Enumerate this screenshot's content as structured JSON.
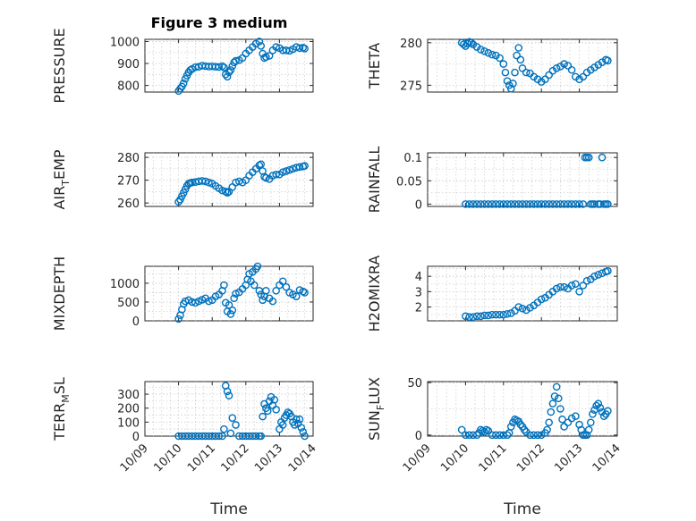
{
  "figure_title": "Figure 3 medium",
  "colors": {
    "marker": "#0072BD",
    "axis": "#262626",
    "grid": "#cfcfcf"
  },
  "chart_data": [
    {
      "id": "pressure",
      "type": "scatter",
      "title": "Figure 3 medium",
      "ylabel": "PRESSURE",
      "ylabel_parts": [
        "PRESSURE"
      ],
      "xlim": [
        9.0,
        14.0
      ],
      "ylim": [
        770,
        1010
      ],
      "yticks": [
        800,
        900,
        1000
      ],
      "x": [
        10.0,
        10.05,
        10.1,
        10.15,
        10.2,
        10.25,
        10.3,
        10.35,
        10.4,
        10.5,
        10.6,
        10.7,
        10.8,
        10.9,
        11.0,
        11.1,
        11.2,
        11.3,
        11.35,
        11.4,
        11.45,
        11.5,
        11.55,
        11.6,
        11.65,
        11.7,
        11.8,
        11.9,
        12.0,
        12.1,
        12.2,
        12.3,
        12.4,
        12.45,
        12.5,
        12.55,
        12.6,
        12.7,
        12.8,
        12.9,
        13.0,
        13.1,
        13.2,
        13.3,
        13.4,
        13.5,
        13.6,
        13.7,
        13.75
      ],
      "y": [
        775,
        785,
        795,
        810,
        830,
        845,
        860,
        870,
        875,
        883,
        885,
        890,
        888,
        886,
        887,
        885,
        884,
        888,
        882,
        850,
        840,
        860,
        870,
        888,
        905,
        912,
        915,
        925,
        945,
        960,
        975,
        990,
        1000,
        980,
        945,
        925,
        930,
        935,
        960,
        975,
        970,
        960,
        960,
        958,
        965,
        975,
        970,
        972,
        968
      ]
    },
    {
      "id": "theta",
      "type": "scatter",
      "ylabel": "THETA",
      "ylabel_parts": [
        "THETA"
      ],
      "xlim": [
        9.0,
        14.0
      ],
      "ylim": [
        274.2,
        280.4
      ],
      "yticks": [
        275,
        280
      ],
      "x": [
        9.9,
        9.95,
        10.0,
        10.05,
        10.1,
        10.15,
        10.2,
        10.3,
        10.4,
        10.5,
        10.6,
        10.7,
        10.8,
        10.9,
        11.0,
        11.05,
        11.1,
        11.15,
        11.2,
        11.25,
        11.3,
        11.35,
        11.4,
        11.45,
        11.5,
        11.6,
        11.7,
        11.8,
        11.9,
        12.0,
        12.1,
        12.2,
        12.3,
        12.4,
        12.5,
        12.6,
        12.7,
        12.8,
        12.9,
        13.0,
        13.1,
        13.2,
        13.3,
        13.4,
        13.5,
        13.6,
        13.7,
        13.75
      ],
      "y": [
        280.0,
        279.8,
        279.6,
        279.9,
        280.1,
        280.0,
        279.8,
        279.5,
        279.2,
        279.0,
        278.8,
        278.6,
        278.5,
        278.2,
        277.5,
        276.5,
        275.5,
        275.0,
        274.6,
        275.2,
        276.5,
        278.5,
        279.4,
        278.0,
        277.0,
        276.5,
        276.4,
        276.0,
        275.7,
        275.4,
        275.7,
        276.2,
        276.7,
        277.0,
        277.2,
        277.5,
        277.3,
        276.8,
        276.0,
        275.7,
        276.0,
        276.5,
        276.8,
        277.1,
        277.4,
        277.7,
        278.0,
        277.9
      ]
    },
    {
      "id": "air_temp",
      "type": "scatter",
      "ylabel": "AIR_TEMP",
      "ylabel_parts": [
        "AIR",
        "T",
        "EMP"
      ],
      "xlim": [
        9.0,
        14.0
      ],
      "ylim": [
        258.5,
        282
      ],
      "yticks": [
        260,
        270,
        280
      ],
      "x": [
        10.0,
        10.05,
        10.1,
        10.15,
        10.2,
        10.25,
        10.3,
        10.35,
        10.4,
        10.5,
        10.6,
        10.7,
        10.8,
        10.9,
        11.0,
        11.1,
        11.2,
        11.3,
        11.4,
        11.45,
        11.5,
        11.6,
        11.7,
        11.8,
        11.9,
        12.0,
        12.1,
        12.2,
        12.3,
        12.4,
        12.45,
        12.5,
        12.55,
        12.6,
        12.7,
        12.8,
        12.9,
        13.0,
        13.1,
        13.2,
        13.3,
        13.4,
        13.5,
        13.6,
        13.7,
        13.75
      ],
      "y": [
        260.5,
        261.5,
        263,
        264.5,
        266,
        267.5,
        268.5,
        268.8,
        269,
        269.2,
        269.5,
        269.7,
        269.5,
        269,
        268.5,
        267.5,
        266.5,
        265.5,
        265,
        264.5,
        265,
        267,
        269,
        269.5,
        269,
        270,
        272,
        273.5,
        275,
        276.5,
        277,
        274,
        271.5,
        271,
        270.5,
        272,
        272.5,
        272.5,
        273.5,
        274,
        274.5,
        275,
        275.5,
        275.8,
        276,
        276.3
      ]
    },
    {
      "id": "rainfall",
      "type": "scatter",
      "ylabel": "RAINFALL",
      "ylabel_parts": [
        "RAINFALL"
      ],
      "xlim": [
        9.0,
        14.0
      ],
      "ylim": [
        -0.005,
        0.11
      ],
      "yticks": [
        0,
        0.05,
        0.1
      ],
      "ytick_labels": [
        "0",
        "0.05",
        "0.1"
      ],
      "x": [
        10.0,
        10.1,
        10.2,
        10.3,
        10.4,
        10.5,
        10.6,
        10.7,
        10.8,
        10.9,
        11.0,
        11.1,
        11.2,
        11.3,
        11.4,
        11.5,
        11.6,
        11.7,
        11.8,
        11.9,
        12.0,
        12.1,
        12.2,
        12.3,
        12.4,
        12.5,
        12.6,
        12.7,
        12.8,
        12.9,
        13.0,
        13.1,
        13.15,
        13.2,
        13.25,
        13.3,
        13.35,
        13.4,
        13.5,
        13.55,
        13.6,
        13.65,
        13.7,
        13.75
      ],
      "y": [
        0,
        0,
        0,
        0,
        0,
        0,
        0,
        0,
        0,
        0,
        0,
        0,
        0,
        0,
        0,
        0,
        0,
        0,
        0,
        0,
        0,
        0,
        0,
        0,
        0,
        0,
        0,
        0,
        0,
        0,
        0,
        0,
        0.1,
        0.1,
        0.1,
        0,
        0,
        0,
        0,
        0,
        0.1,
        0,
        0,
        0
      ]
    },
    {
      "id": "mixdepth",
      "type": "scatter",
      "ylabel": "MIXDEPTH",
      "ylabel_parts": [
        "MIXDEPTH"
      ],
      "xlim": [
        9.0,
        14.0
      ],
      "ylim": [
        0,
        1450
      ],
      "yticks": [
        0,
        500,
        1000
      ],
      "x": [
        10.0,
        10.05,
        10.1,
        10.15,
        10.2,
        10.3,
        10.4,
        10.5,
        10.6,
        10.7,
        10.8,
        10.9,
        11.0,
        11.1,
        11.2,
        11.3,
        11.35,
        11.4,
        11.45,
        11.5,
        11.55,
        11.6,
        11.65,
        11.7,
        11.8,
        11.9,
        12.0,
        12.05,
        12.1,
        12.15,
        12.2,
        12.25,
        12.3,
        12.35,
        12.4,
        12.45,
        12.5,
        12.55,
        12.6,
        12.7,
        12.8,
        12.9,
        13.0,
        13.1,
        13.2,
        13.3,
        13.4,
        13.5,
        13.6,
        13.7,
        13.75
      ],
      "y": [
        50,
        150,
        300,
        450,
        520,
        550,
        500,
        480,
        520,
        560,
        600,
        520,
        550,
        650,
        700,
        800,
        950,
        480,
        250,
        420,
        180,
        280,
        600,
        720,
        760,
        850,
        950,
        1100,
        1250,
        1050,
        1300,
        950,
        1380,
        1450,
        800,
        700,
        550,
        650,
        800,
        600,
        520,
        800,
        950,
        1050,
        900,
        750,
        700,
        650,
        820,
        780,
        750
      ]
    },
    {
      "id": "h2omixra",
      "type": "scatter",
      "ylabel": "H2OMIXRA",
      "ylabel_parts": [
        "H2OMIXRA"
      ],
      "xlim": [
        9.0,
        14.0
      ],
      "ylim": [
        1.1,
        4.65
      ],
      "yticks": [
        2,
        3,
        4
      ],
      "x": [
        10.0,
        10.1,
        10.2,
        10.3,
        10.4,
        10.5,
        10.6,
        10.7,
        10.8,
        10.9,
        11.0,
        11.1,
        11.2,
        11.3,
        11.4,
        11.5,
        11.6,
        11.7,
        11.8,
        11.9,
        12.0,
        12.1,
        12.2,
        12.3,
        12.4,
        12.5,
        12.6,
        12.7,
        12.8,
        12.9,
        13.0,
        13.1,
        13.2,
        13.3,
        13.4,
        13.5,
        13.6,
        13.7,
        13.75
      ],
      "y": [
        1.4,
        1.35,
        1.35,
        1.4,
        1.4,
        1.45,
        1.45,
        1.5,
        1.5,
        1.5,
        1.5,
        1.55,
        1.6,
        1.75,
        2.0,
        1.9,
        1.8,
        1.95,
        2.1,
        2.3,
        2.5,
        2.6,
        2.8,
        3.0,
        3.2,
        3.3,
        3.3,
        3.2,
        3.4,
        3.5,
        3.0,
        3.4,
        3.7,
        3.8,
        4.0,
        4.1,
        4.2,
        4.3,
        4.35
      ]
    },
    {
      "id": "terr_msl",
      "type": "scatter",
      "ylabel": "TERR_MSL",
      "ylabel_parts": [
        "TERR",
        "M",
        "SL"
      ],
      "xlim": [
        9.0,
        14.0
      ],
      "ylim": [
        0,
        390
      ],
      "yticks": [
        0,
        100,
        200,
        300
      ],
      "x": [
        10.0,
        10.1,
        10.2,
        10.3,
        10.4,
        10.5,
        10.6,
        10.7,
        10.8,
        10.9,
        11.0,
        11.1,
        11.2,
        11.3,
        11.35,
        11.4,
        11.45,
        11.5,
        11.55,
        11.6,
        11.7,
        11.8,
        11.9,
        12.0,
        12.1,
        12.2,
        12.3,
        12.4,
        12.45,
        12.5,
        12.55,
        12.6,
        12.65,
        12.7,
        12.75,
        12.8,
        12.85,
        12.9,
        13.0,
        13.05,
        13.1,
        13.15,
        13.2,
        13.25,
        13.3,
        13.35,
        13.4,
        13.45,
        13.5,
        13.55,
        13.6,
        13.65,
        13.7,
        13.75
      ],
      "y": [
        0,
        0,
        0,
        0,
        0,
        0,
        0,
        0,
        0,
        0,
        0,
        0,
        0,
        0,
        50,
        360,
        320,
        290,
        20,
        130,
        80,
        0,
        0,
        0,
        0,
        0,
        0,
        0,
        0,
        140,
        230,
        200,
        180,
        250,
        280,
        220,
        260,
        190,
        50,
        100,
        80,
        130,
        150,
        170,
        160,
        140,
        100,
        80,
        120,
        90,
        120,
        60,
        30,
        0
      ]
    },
    {
      "id": "sun_flux",
      "type": "scatter",
      "ylabel": "SUN_FLUX",
      "ylabel_parts": [
        "SUN",
        "F",
        "LUX"
      ],
      "xlim": [
        9.0,
        14.0
      ],
      "ylim": [
        -1,
        51
      ],
      "yticks": [
        0,
        50
      ],
      "x": [
        9.9,
        10.0,
        10.1,
        10.2,
        10.3,
        10.35,
        10.4,
        10.45,
        10.5,
        10.55,
        10.6,
        10.7,
        10.8,
        10.9,
        11.0,
        11.1,
        11.15,
        11.2,
        11.25,
        11.3,
        11.35,
        11.4,
        11.45,
        11.5,
        11.55,
        11.6,
        11.7,
        11.8,
        11.9,
        12.0,
        12.1,
        12.15,
        12.2,
        12.25,
        12.3,
        12.35,
        12.4,
        12.45,
        12.5,
        12.55,
        12.6,
        12.7,
        12.8,
        12.9,
        13.0,
        13.05,
        13.1,
        13.15,
        13.2,
        13.25,
        13.3,
        13.35,
        13.4,
        13.45,
        13.5,
        13.55,
        13.6,
        13.65,
        13.7,
        13.75
      ],
      "y": [
        5,
        0,
        0,
        0,
        0,
        2,
        5,
        4,
        3,
        5,
        4,
        0,
        0,
        0,
        0,
        0,
        2,
        8,
        12,
        15,
        14,
        13,
        10,
        8,
        5,
        3,
        0,
        0,
        0,
        0,
        2,
        5,
        12,
        22,
        30,
        37,
        46,
        35,
        25,
        15,
        8,
        12,
        16,
        18,
        10,
        5,
        0,
        0,
        0,
        5,
        12,
        20,
        24,
        28,
        30,
        26,
        22,
        18,
        20,
        23
      ]
    }
  ],
  "axes_order": [
    "pressure",
    "theta",
    "air_temp",
    "rainfall",
    "mixdepth",
    "h2omixra",
    "terr_msl",
    "sun_flux"
  ],
  "x_ticks": {
    "values": [
      9,
      10,
      11,
      12,
      13,
      14
    ],
    "labels": [
      "10/09",
      "10/10",
      "10/11",
      "10/12",
      "10/13",
      "10/14"
    ],
    "xlabel": "Time"
  }
}
